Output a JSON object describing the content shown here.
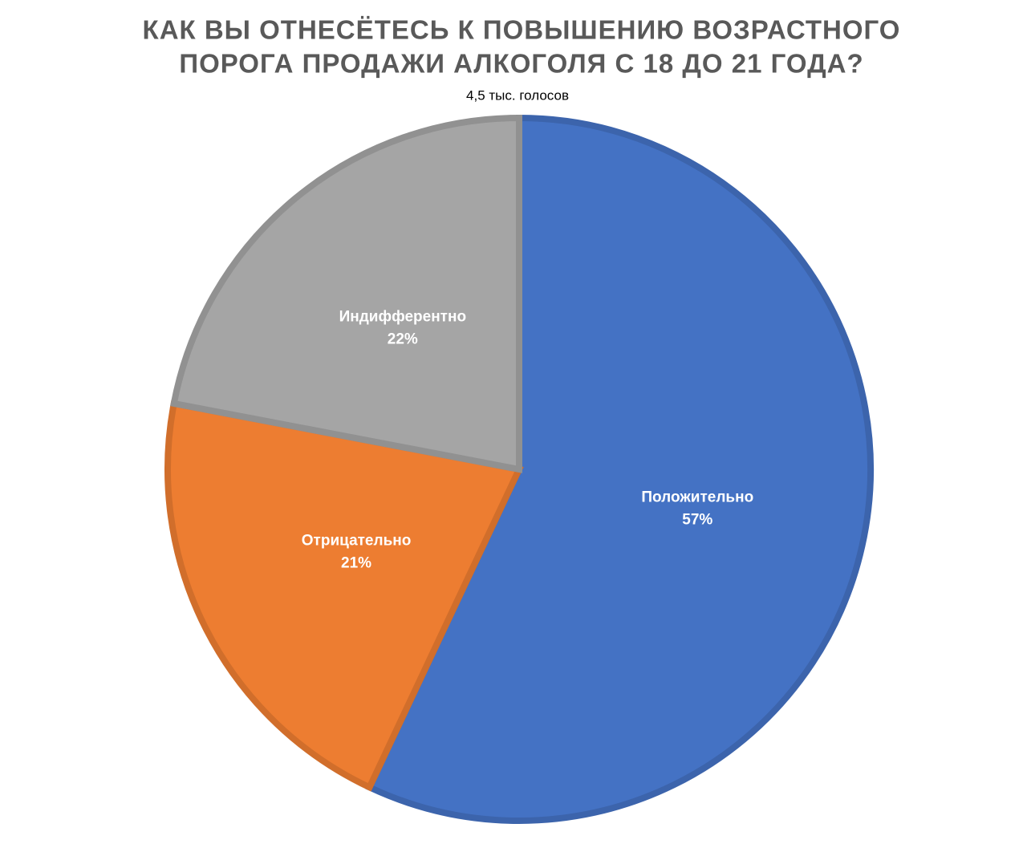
{
  "chart_data": {
    "type": "pie",
    "title": [
      "КАК ВЫ ОТНЕСЁТЕСЬ К ПОВЫШЕНИЮ ВОЗРАСТНОГО",
      "ПОРОГА ПРОДАЖИ АЛКОГОЛЯ С 18 ДО 21 ГОДА?"
    ],
    "subtitle": "4,5 тыс. голосов",
    "categories": [
      "Положительно",
      "Отрицательно",
      "Индифферентно"
    ],
    "values": [
      57,
      21,
      22
    ],
    "value_labels": [
      "57%",
      "21%",
      "22%"
    ],
    "colors": [
      "#4472c4",
      "#ed7d31",
      "#a5a5a5"
    ]
  }
}
